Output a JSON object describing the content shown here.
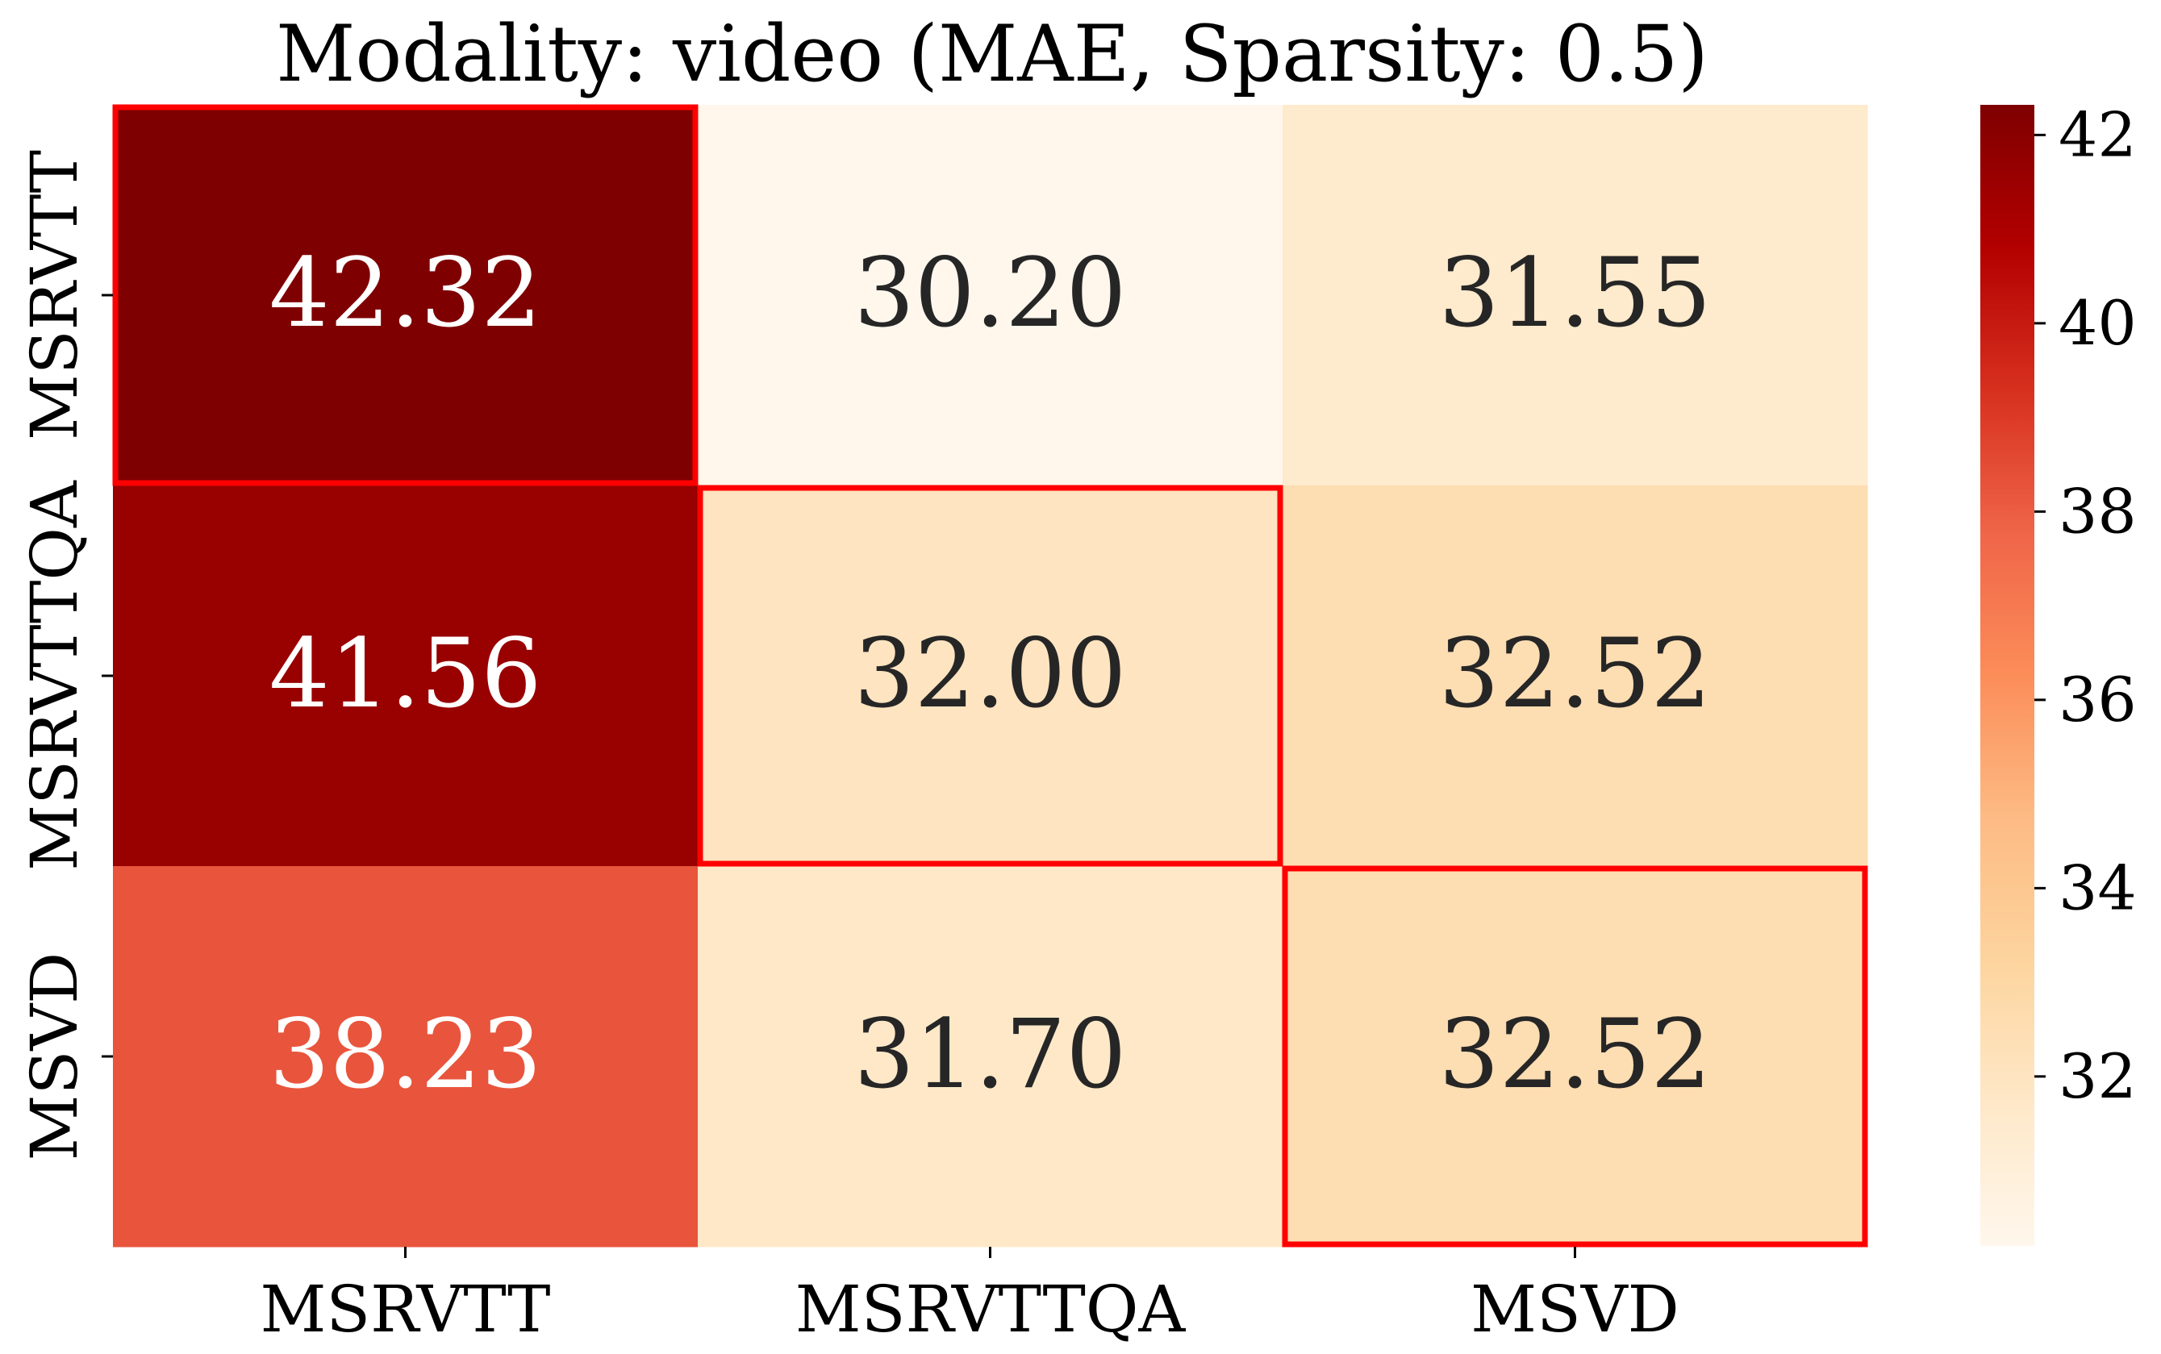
{
  "chart_data": {
    "type": "heatmap",
    "title": "Modality: video (MAE, Sparsity: 0.5)",
    "xlabel": "",
    "ylabel": "",
    "x_categories": [
      "MSRVTT",
      "MSRVTTQA",
      "MSVD"
    ],
    "y_categories": [
      "MSRVTT",
      "MSRVTTQA",
      "MSVD"
    ],
    "values": [
      [
        42.32,
        30.2,
        31.55
      ],
      [
        41.56,
        32.0,
        32.52
      ],
      [
        38.23,
        31.7,
        32.52
      ]
    ],
    "value_labels": [
      [
        "42.32",
        "30.20",
        "31.55"
      ],
      [
        "41.56",
        "32.00",
        "32.52"
      ],
      [
        "38.23",
        "31.70",
        "32.52"
      ]
    ],
    "highlighted_cells": [
      [
        0,
        0
      ],
      [
        1,
        1
      ],
      [
        2,
        2
      ]
    ],
    "highlight_color": "#ff0000",
    "colormap": "OrRd",
    "colorbar": {
      "min": 30.2,
      "max": 42.32,
      "ticks": [
        32,
        34,
        36,
        38,
        40,
        42
      ],
      "tick_labels": [
        "32",
        "34",
        "36",
        "38",
        "40",
        "42"
      ],
      "placement": "right"
    }
  }
}
